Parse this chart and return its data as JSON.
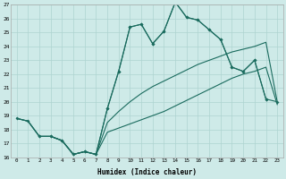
{
  "xlabel": "Humidex (Indice chaleur)",
  "background_color": "#ceeae8",
  "grid_color": "#aed4d0",
  "line_color": "#1a6b5e",
  "xlim": [
    -0.5,
    23.5
  ],
  "ylim": [
    16,
    27
  ],
  "xticks": [
    0,
    1,
    2,
    3,
    4,
    5,
    6,
    7,
    8,
    9,
    10,
    11,
    12,
    13,
    14,
    15,
    16,
    17,
    18,
    19,
    20,
    21,
    22,
    23
  ],
  "yticks": [
    16,
    17,
    18,
    19,
    20,
    21,
    22,
    23,
    24,
    25,
    26,
    27
  ],
  "s1x": [
    0,
    1,
    2,
    3,
    4,
    5,
    6,
    7,
    8,
    9,
    10,
    11,
    12,
    13,
    14,
    15,
    16,
    17,
    18,
    19,
    20,
    21,
    22,
    23
  ],
  "s1y": [
    18.8,
    18.6,
    17.5,
    17.5,
    17.2,
    16.2,
    16.4,
    16.2,
    17.8,
    18.1,
    18.4,
    18.7,
    19.0,
    19.3,
    19.7,
    20.1,
    20.5,
    20.9,
    21.3,
    21.7,
    22.0,
    22.2,
    22.5,
    19.8
  ],
  "s2x": [
    0,
    1,
    2,
    3,
    4,
    5,
    6,
    7,
    8,
    9,
    10,
    11,
    12,
    13,
    14,
    15,
    16,
    17,
    18,
    19,
    20,
    21,
    22,
    23
  ],
  "s2y": [
    18.8,
    18.6,
    17.5,
    17.5,
    17.2,
    16.2,
    16.4,
    16.2,
    18.5,
    19.3,
    20.0,
    20.6,
    21.1,
    21.5,
    21.9,
    22.3,
    22.7,
    23.0,
    23.3,
    23.6,
    23.8,
    24.0,
    24.3,
    20.0
  ],
  "s3x": [
    0,
    1,
    2,
    3,
    4,
    5,
    6,
    7,
    8,
    9,
    10,
    11,
    12,
    13,
    14,
    15,
    16,
    17,
    18,
    19,
    20,
    21,
    22
  ],
  "s3y": [
    18.8,
    18.6,
    17.5,
    17.5,
    17.2,
    16.2,
    16.4,
    16.2,
    19.5,
    22.2,
    25.4,
    25.6,
    24.2,
    25.1,
    27.2,
    26.1,
    25.9,
    25.2,
    24.5,
    22.5,
    22.2,
    23.0,
    20.2
  ],
  "s4x": [
    2,
    3,
    4,
    5,
    6,
    7,
    8,
    9,
    10,
    11,
    12,
    13,
    14,
    15,
    16,
    17,
    18,
    19,
    20,
    21,
    22,
    23
  ],
  "s4y": [
    17.5,
    17.5,
    17.2,
    16.2,
    16.4,
    16.2,
    19.5,
    22.2,
    25.4,
    25.6,
    24.2,
    25.1,
    27.2,
    26.1,
    25.9,
    25.2,
    24.5,
    22.5,
    22.2,
    23.0,
    20.2,
    20.0
  ]
}
